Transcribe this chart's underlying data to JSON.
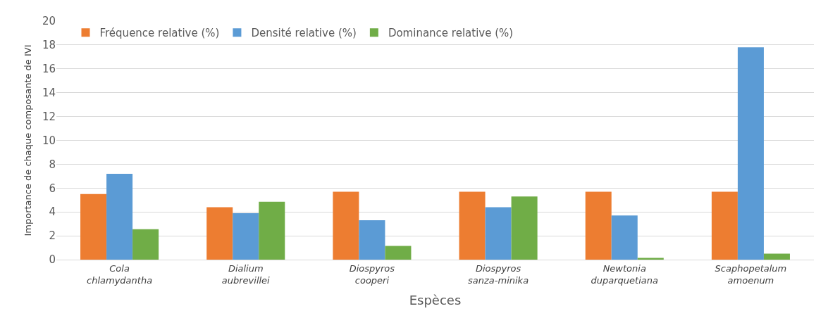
{
  "chart_data": {
    "type": "bar",
    "xlabel": "Espèces",
    "ylabel": "Importance de chaque composante de IVI",
    "categories": [
      "Cola chlamydantha",
      "Dialium aubrevillei",
      "Diospyros cooperi",
      "Diospyros sanza-minika",
      "Newtonia duparquetiana",
      "Scaphopetalum amoenum"
    ],
    "series": [
      {
        "name": "Fréquence relative (%)",
        "color": "#ed7d31",
        "values": [
          5.5,
          4.4,
          5.7,
          5.7,
          5.7,
          5.7
        ]
      },
      {
        "name": "Densité relative (%)",
        "color": "#5b9bd5",
        "values": [
          7.2,
          3.9,
          3.3,
          4.4,
          3.7,
          17.8
        ]
      },
      {
        "name": "Dominance relative (%)",
        "color": "#70ad47",
        "values": [
          2.55,
          4.85,
          1.15,
          5.3,
          0.15,
          0.5
        ]
      }
    ],
    "ylim": [
      0,
      20
    ],
    "yticks": [
      0,
      2,
      4,
      6,
      8,
      10,
      12,
      14,
      16,
      18,
      20
    ],
    "grid": "y",
    "legend": "top left"
  }
}
